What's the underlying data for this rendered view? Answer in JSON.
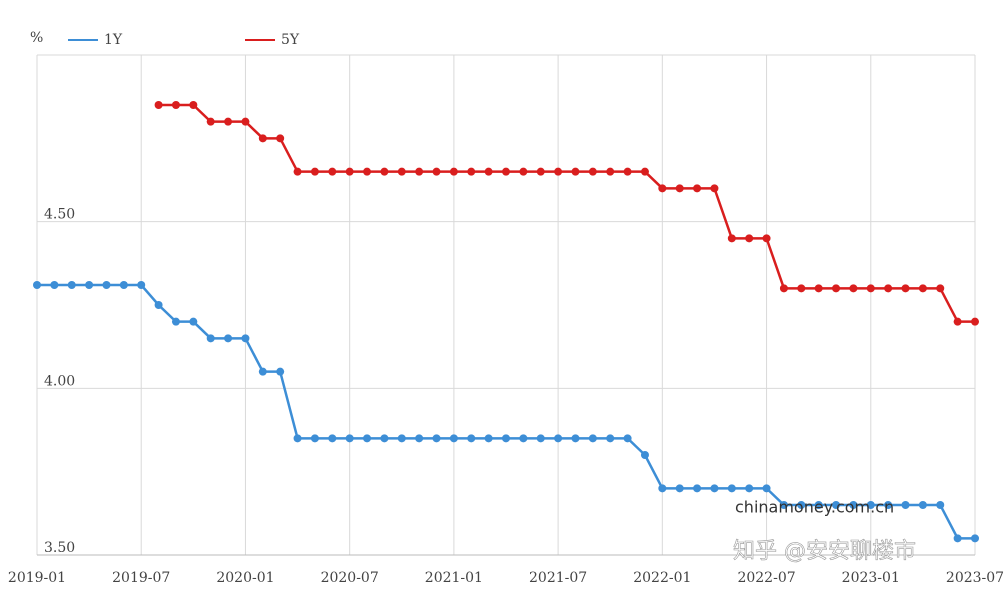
{
  "chart_data": {
    "type": "line",
    "y_unit": "%",
    "categories": [
      "2019-01",
      null,
      null,
      null,
      null,
      null,
      "2019-07",
      null,
      null,
      null,
      null,
      null,
      "2020-01",
      null,
      null,
      null,
      null,
      null,
      "2020-07",
      null,
      null,
      null,
      null,
      null,
      "2021-01",
      null,
      null,
      null,
      null,
      null,
      "2021-07",
      null,
      null,
      null,
      null,
      null,
      "2022-01",
      null,
      null,
      null,
      null,
      null,
      "2022-07",
      null,
      null,
      null,
      null,
      null,
      "2023-01",
      null,
      null,
      null,
      null,
      null,
      "2023-07"
    ],
    "series": [
      {
        "name": "1Y",
        "color": "#3d8ed6",
        "values": [
          4.31,
          4.31,
          4.31,
          4.31,
          4.31,
          4.31,
          4.31,
          4.25,
          4.2,
          4.2,
          4.15,
          4.15,
          4.15,
          4.05,
          4.05,
          3.85,
          3.85,
          3.85,
          3.85,
          3.85,
          3.85,
          3.85,
          3.85,
          3.85,
          3.85,
          3.85,
          3.85,
          3.85,
          3.85,
          3.85,
          3.85,
          3.85,
          3.85,
          3.85,
          3.85,
          3.8,
          3.7,
          3.7,
          3.7,
          3.7,
          3.7,
          3.7,
          3.7,
          3.65,
          3.65,
          3.65,
          3.65,
          3.65,
          3.65,
          3.65,
          3.65,
          3.65,
          3.65,
          3.55,
          3.55
        ]
      },
      {
        "name": "5Y",
        "color": "#d91e1e",
        "values": [
          null,
          null,
          null,
          null,
          null,
          null,
          null,
          4.85,
          4.85,
          4.85,
          4.8,
          4.8,
          4.8,
          4.75,
          4.75,
          4.65,
          4.65,
          4.65,
          4.65,
          4.65,
          4.65,
          4.65,
          4.65,
          4.65,
          4.65,
          4.65,
          4.65,
          4.65,
          4.65,
          4.65,
          4.65,
          4.65,
          4.65,
          4.65,
          4.65,
          4.65,
          4.6,
          4.6,
          4.6,
          4.6,
          4.45,
          4.45,
          4.45,
          4.3,
          4.3,
          4.3,
          4.3,
          4.3,
          4.3,
          4.3,
          4.3,
          4.3,
          4.3,
          4.2,
          4.2
        ]
      }
    ],
    "ylim": [
      3.5,
      5.0
    ],
    "yticks": [
      {
        "value": 3.5,
        "label": "3.50"
      },
      {
        "value": 4,
        "label": "4.00"
      },
      {
        "value": 4.5,
        "label": "4.50"
      },
      {
        "value": 5,
        "label": ""
      }
    ],
    "grid": true,
    "annotations": [
      "chinamoney.com.cn",
      "知乎 @安安聊楼市"
    ]
  }
}
